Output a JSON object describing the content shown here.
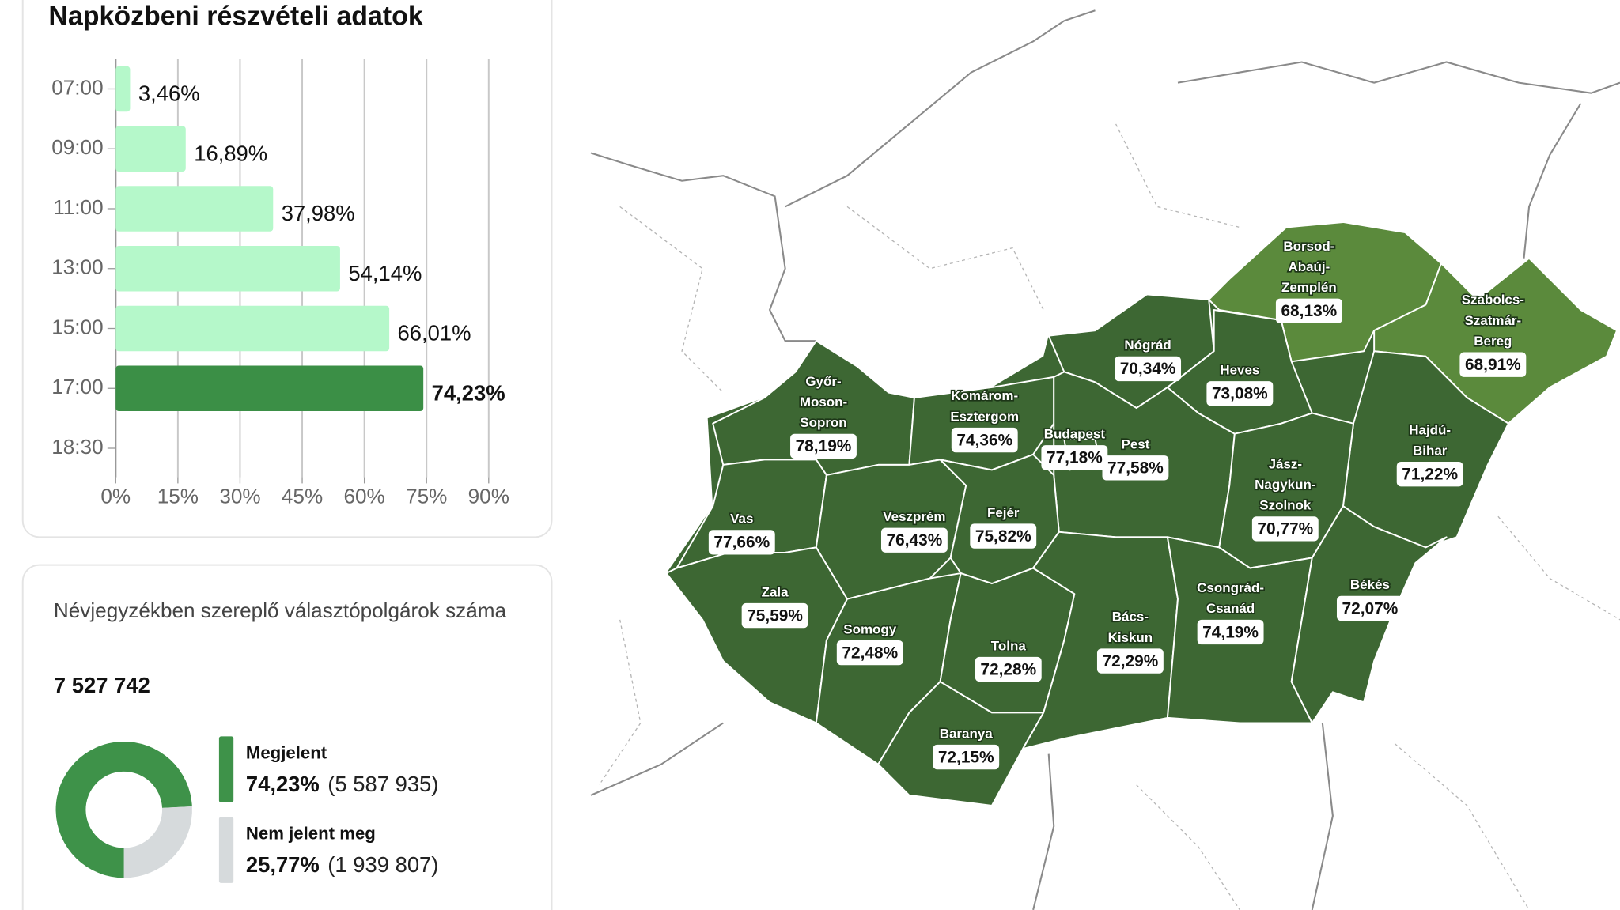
{
  "chart_data": [
    {
      "type": "bar",
      "orientation": "horizontal",
      "title": "Napközbeni részvételi adatok",
      "categories": [
        "07:00",
        "09:00",
        "11:00",
        "13:00",
        "15:00",
        "17:00",
        "18:30"
      ],
      "values": [
        3.46,
        16.89,
        37.98,
        54.14,
        66.01,
        74.23,
        null
      ],
      "value_labels": [
        "3,46%",
        "16,89%",
        "37,98%",
        "54,14%",
        "66,01%",
        "74,23%",
        null
      ],
      "color": "#b5f8ca",
      "highlight": "17:00",
      "highlight_color": "#3b8f46",
      "xlim": [
        0,
        90
      ],
      "xticks": [
        {
          "value": 0,
          "label": "0%"
        },
        {
          "value": 15,
          "label": "15%"
        },
        {
          "value": 30,
          "label": "30%"
        },
        {
          "value": 45,
          "label": "45%"
        },
        {
          "value": 60,
          "label": "60%"
        },
        {
          "value": 75,
          "label": "75%"
        },
        {
          "value": 90,
          "label": "90%"
        }
      ],
      "grid": true
    },
    {
      "type": "pie",
      "donut": true,
      "subtitle": "Névjegyzékben szereplő választópolgárok száma",
      "total": 7527742,
      "total_label": "7 527 742",
      "categories": [
        "Megjelent",
        "Nem jelent meg"
      ],
      "values": [
        74.23,
        25.77
      ],
      "value_labels": [
        "74,23%",
        "25,77%"
      ],
      "counts": [
        5587935,
        1939807
      ],
      "count_labels": [
        "(5 587 935)",
        "(1 939 807)"
      ],
      "colors": [
        "#3e9249",
        "#d6dadc"
      ]
    }
  ],
  "map": {
    "regions": [
      {
        "name_lines": [
          "Győr-",
          "Moson-",
          "Sopron"
        ],
        "value": "78,19%",
        "color": "#3d6733"
      },
      {
        "name_lines": [
          "Komárom-",
          "Esztergom"
        ],
        "value": "74,36%",
        "color": "#3d6733"
      },
      {
        "name_lines": [
          "Nógrád"
        ],
        "value": "70,34%",
        "color": "#3d6733"
      },
      {
        "name_lines": [
          "Borsod-",
          "Abaúj-",
          "Zemplén"
        ],
        "value": "68,13%",
        "color": "#5b8a3c"
      },
      {
        "name_lines": [
          "Szabolcs-",
          "Szatmár-",
          "Bereg"
        ],
        "value": "68,91%",
        "color": "#5b8a3c"
      },
      {
        "name_lines": [
          "Heves"
        ],
        "value": "73,08%",
        "color": "#3d6733"
      },
      {
        "name_lines": [
          "Hajdú-",
          "Bihar"
        ],
        "value": "71,22%",
        "color": "#3d6733"
      },
      {
        "name_lines": [
          "Pest"
        ],
        "value": "77,58%",
        "color": "#3d6733"
      },
      {
        "name_lines": [
          "Budapest"
        ],
        "value": "77,18%",
        "color": "#3d6733"
      },
      {
        "name_lines": [
          "Jász-",
          "Nagykun-",
          "Szolnok"
        ],
        "value": "70,77%",
        "color": "#3d6733"
      },
      {
        "name_lines": [
          "Vas"
        ],
        "value": "77,66%",
        "color": "#3d6733"
      },
      {
        "name_lines": [
          "Veszprém"
        ],
        "value": "76,43%",
        "color": "#3d6733"
      },
      {
        "name_lines": [
          "Fejér"
        ],
        "value": "75,82%",
        "color": "#3d6733"
      },
      {
        "name_lines": [
          "Zala"
        ],
        "value": "75,59%",
        "color": "#3d6733"
      },
      {
        "name_lines": [
          "Somogy"
        ],
        "value": "72,48%",
        "color": "#3d6733"
      },
      {
        "name_lines": [
          "Tolna"
        ],
        "value": "72,28%",
        "color": "#3d6733"
      },
      {
        "name_lines": [
          "Baranya"
        ],
        "value": "72,15%",
        "color": "#3d6733"
      },
      {
        "name_lines": [
          "Bács-",
          "Kiskun"
        ],
        "value": "72,29%",
        "color": "#3d6733"
      },
      {
        "name_lines": [
          "Csongrád-",
          "Csanád"
        ],
        "value": "74,19%",
        "color": "#3d6733"
      },
      {
        "name_lines": [
          "Békés"
        ],
        "value": "72,07%",
        "color": "#3d6733"
      }
    ]
  }
}
